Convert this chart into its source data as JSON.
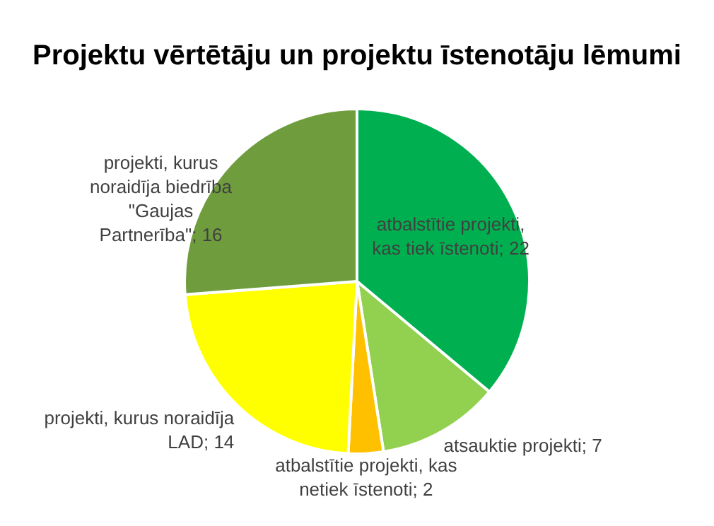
{
  "chart_data": {
    "type": "pie",
    "title": "Projektu vērtētāju un projektu īstenotāju lēmumi",
    "categories": [
      "atbalstītie projekti, kas tiek īstenoti",
      "atsauktie projekti",
      "atbalstītie projekti, kas netiek īstenoti",
      "projekti, kurus noraidīja LAD",
      "projekti, kurus noraidīja biedrība \"Gaujas Partnerība\""
    ],
    "values": [
      22,
      7,
      2,
      14,
      16
    ],
    "value_labels": [
      "; 22",
      "; 7",
      "; 2",
      "; 14",
      "; 16"
    ],
    "colors": [
      "#00b050",
      "#92d050",
      "#ffc000",
      "#ffff00",
      "#6f9d3e"
    ],
    "legend": false
  }
}
